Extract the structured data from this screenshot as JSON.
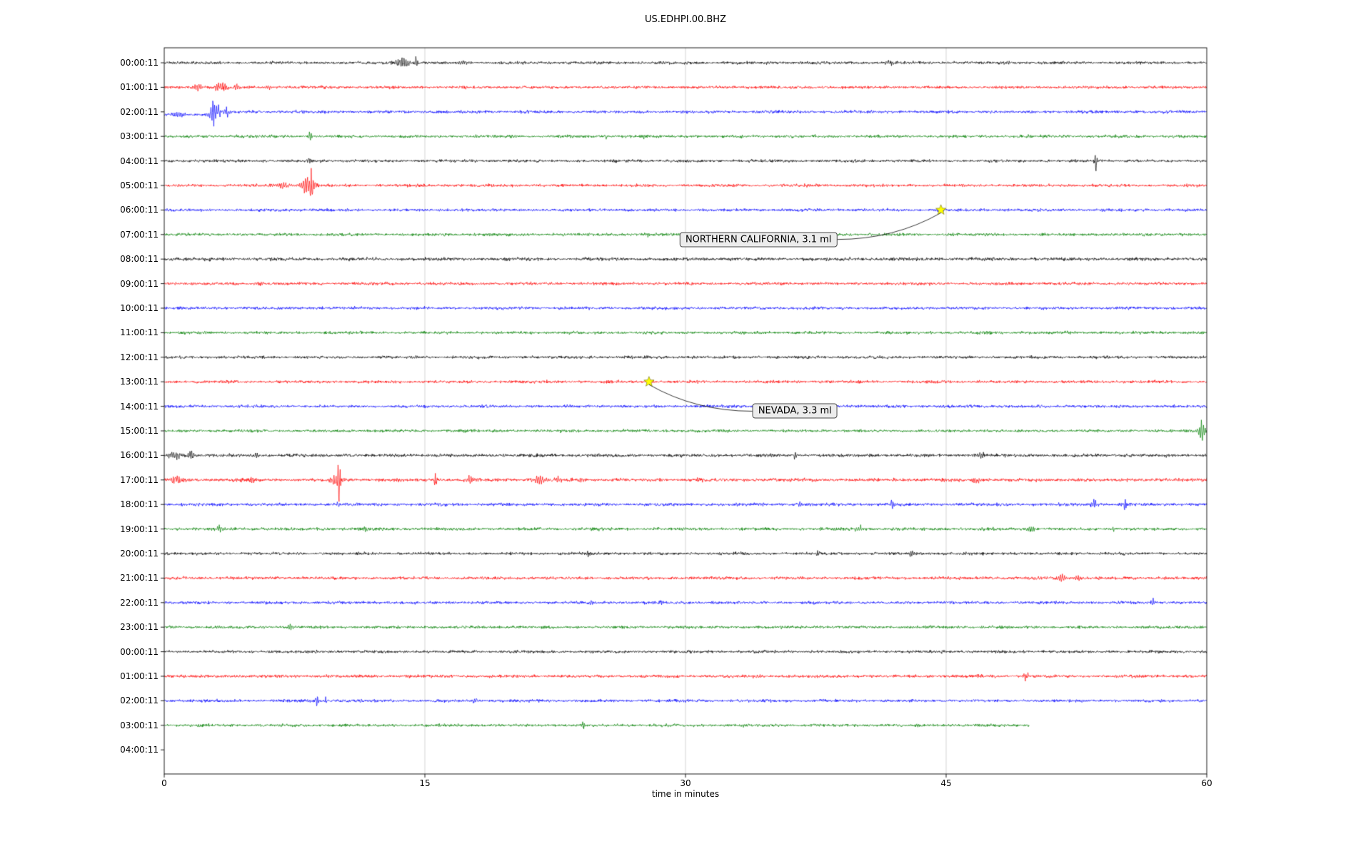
{
  "chart_data": {
    "type": "line",
    "subtype": "seismogram-dayplot",
    "title": "US.EDHPI.00.BHZ",
    "xlabel": "time in minutes",
    "xlim": [
      0,
      60
    ],
    "xticks": [
      0,
      15,
      30,
      45,
      60
    ],
    "grid_x": [
      15,
      30,
      45
    ],
    "grid_color": "#c8c8c8",
    "axis_color": "#000000",
    "trace_color_cycle": [
      "#000000",
      "#ff0000",
      "#0000ff",
      "#008000"
    ],
    "final_y_label": "04:00:11",
    "rows": [
      {
        "label": "00:00:11",
        "color": "#000000",
        "noise": 1.0,
        "bursts": [
          [
            13.7,
            0.5,
            7
          ],
          [
            14.5,
            0.07,
            16
          ],
          [
            17.2,
            0.3,
            4
          ],
          [
            41.8,
            0.25,
            4
          ]
        ]
      },
      {
        "label": "01:00:11",
        "color": "#ff0000",
        "noise": 1.0,
        "bursts": [
          [
            2.0,
            0.25,
            5
          ],
          [
            3.3,
            0.35,
            8
          ],
          [
            4.2,
            0.15,
            5
          ],
          [
            6.0,
            0.2,
            3
          ]
        ]
      },
      {
        "label": "02:00:11",
        "color": "#0000ff",
        "noise": 1.0,
        "offset": [
          0,
          2.6,
          4
        ],
        "bursts": [
          [
            0.8,
            0.4,
            4
          ],
          [
            2.9,
            0.3,
            18
          ],
          [
            3.6,
            0.15,
            8
          ]
        ]
      },
      {
        "label": "03:00:11",
        "color": "#008000",
        "noise": 1.0,
        "bursts": [
          [
            8.4,
            0.12,
            9
          ],
          [
            25.4,
            0.08,
            5
          ],
          [
            27.6,
            0.08,
            4
          ]
        ]
      },
      {
        "label": "04:00:11",
        "color": "#000000",
        "noise": 1.0,
        "bursts": [
          [
            8.35,
            0.1,
            7
          ],
          [
            53.6,
            0.09,
            19
          ]
        ]
      },
      {
        "label": "05:00:11",
        "color": "#ff0000",
        "noise": 1.0,
        "bursts": [
          [
            6.8,
            0.5,
            5
          ],
          [
            8.3,
            0.4,
            12
          ],
          [
            8.45,
            0.1,
            22
          ]
        ]
      },
      {
        "label": "06:00:11",
        "color": "#0000ff",
        "noise": 1.0,
        "bursts": [
          [
            44.7,
            0.25,
            3
          ]
        ]
      },
      {
        "label": "07:00:11",
        "color": "#008000",
        "noise": 1.0,
        "bursts": [
          [
            27.8,
            0.1,
            3
          ]
        ]
      },
      {
        "label": "08:00:11",
        "color": "#000000",
        "noise": 1.15,
        "bursts": []
      },
      {
        "label": "09:00:11",
        "color": "#ff0000",
        "noise": 1.05,
        "bursts": [
          [
            5.5,
            0.3,
            3
          ]
        ]
      },
      {
        "label": "10:00:11",
        "color": "#0000ff",
        "noise": 1.0,
        "bursts": []
      },
      {
        "label": "11:00:11",
        "color": "#008000",
        "noise": 1.0,
        "bursts": []
      },
      {
        "label": "12:00:11",
        "color": "#000000",
        "noise": 1.0,
        "bursts": []
      },
      {
        "label": "13:00:11",
        "color": "#ff0000",
        "noise": 1.0,
        "bursts": [
          [
            28.0,
            0.2,
            3
          ]
        ]
      },
      {
        "label": "14:00:11",
        "color": "#0000ff",
        "noise": 1.0,
        "bursts": []
      },
      {
        "label": "15:00:11",
        "color": "#008000",
        "noise": 1.0,
        "bursts": [
          [
            59.7,
            0.2,
            14
          ]
        ]
      },
      {
        "label": "16:00:11",
        "color": "#000000",
        "noise": 1.1,
        "bursts": [
          [
            0.6,
            0.4,
            6
          ],
          [
            1.6,
            0.3,
            5
          ],
          [
            5.3,
            0.1,
            8
          ],
          [
            36.3,
            0.08,
            8
          ],
          [
            47.0,
            0.3,
            4
          ]
        ]
      },
      {
        "label": "17:00:11",
        "color": "#ff0000",
        "noise": 1.15,
        "bursts": [
          [
            0.8,
            0.4,
            5
          ],
          [
            5.0,
            0.2,
            4
          ],
          [
            9.9,
            0.35,
            9
          ],
          [
            10.05,
            0.1,
            26
          ],
          [
            15.6,
            0.08,
            13
          ],
          [
            17.6,
            0.25,
            7
          ],
          [
            21.6,
            0.3,
            7
          ],
          [
            22.6,
            0.2,
            5
          ],
          [
            24.0,
            0.15,
            4
          ],
          [
            30.8,
            0.2,
            4
          ],
          [
            46.8,
            0.25,
            4
          ]
        ]
      },
      {
        "label": "18:00:11",
        "color": "#0000ff",
        "noise": 1.05,
        "bursts": [
          [
            10.0,
            0.08,
            5
          ],
          [
            36.6,
            0.08,
            5
          ],
          [
            41.9,
            0.15,
            6
          ],
          [
            53.5,
            0.2,
            7
          ],
          [
            55.3,
            0.08,
            10
          ]
        ]
      },
      {
        "label": "19:00:11",
        "color": "#008000",
        "noise": 1.05,
        "bursts": [
          [
            3.2,
            0.25,
            4
          ],
          [
            11.6,
            0.15,
            5
          ],
          [
            40.0,
            0.2,
            4
          ],
          [
            49.9,
            0.2,
            6
          ],
          [
            54.6,
            0.15,
            4
          ]
        ]
      },
      {
        "label": "20:00:11",
        "color": "#000000",
        "noise": 1.0,
        "bursts": [
          [
            24.4,
            0.08,
            6
          ],
          [
            37.6,
            0.08,
            9
          ],
          [
            43.1,
            0.25,
            5
          ]
        ]
      },
      {
        "label": "21:00:11",
        "color": "#ff0000",
        "noise": 1.05,
        "bursts": [
          [
            51.6,
            0.3,
            6
          ],
          [
            52.6,
            0.15,
            5
          ]
        ]
      },
      {
        "label": "22:00:11",
        "color": "#0000ff",
        "noise": 1.0,
        "bursts": [
          [
            24.6,
            0.12,
            5
          ],
          [
            28.6,
            0.12,
            4
          ],
          [
            56.9,
            0.12,
            5
          ]
        ]
      },
      {
        "label": "23:00:11",
        "color": "#008000",
        "noise": 1.0,
        "bursts": [
          [
            7.3,
            0.2,
            3
          ]
        ]
      },
      {
        "label": "00:00:11",
        "color": "#000000",
        "noise": 1.0,
        "bursts": [
          [
            8.6,
            0.2,
            3
          ]
        ]
      },
      {
        "label": "01:00:11",
        "color": "#ff0000",
        "noise": 1.05,
        "bursts": [
          [
            49.6,
            0.15,
            7
          ]
        ]
      },
      {
        "label": "02:00:11",
        "color": "#0000ff",
        "noise": 1.0,
        "bursts": [
          [
            8.8,
            0.12,
            9
          ],
          [
            9.3,
            0.08,
            6
          ],
          [
            11.3,
            0.08,
            5
          ],
          [
            17.9,
            0.15,
            5
          ]
        ]
      },
      {
        "label": "03:00:11",
        "color": "#008000",
        "noise": 1.0,
        "end": 49.8,
        "bursts": [
          [
            7.6,
            0.08,
            6
          ],
          [
            24.1,
            0.08,
            5
          ]
        ]
      }
    ],
    "annotations": [
      {
        "text": "NORTHERN CALIFORNIA, 3.1 ml",
        "row": 6,
        "x_min": 44.7,
        "label_min": 34.2,
        "label_row": 7.2,
        "marker": "star",
        "marker_color": "#ffff00"
      },
      {
        "text": "NEVADA, 3.3 ml",
        "row": 13,
        "x_min": 27.9,
        "label_min": 36.3,
        "label_row": 14.2,
        "marker": "star",
        "marker_color": "#ffff00"
      }
    ]
  }
}
